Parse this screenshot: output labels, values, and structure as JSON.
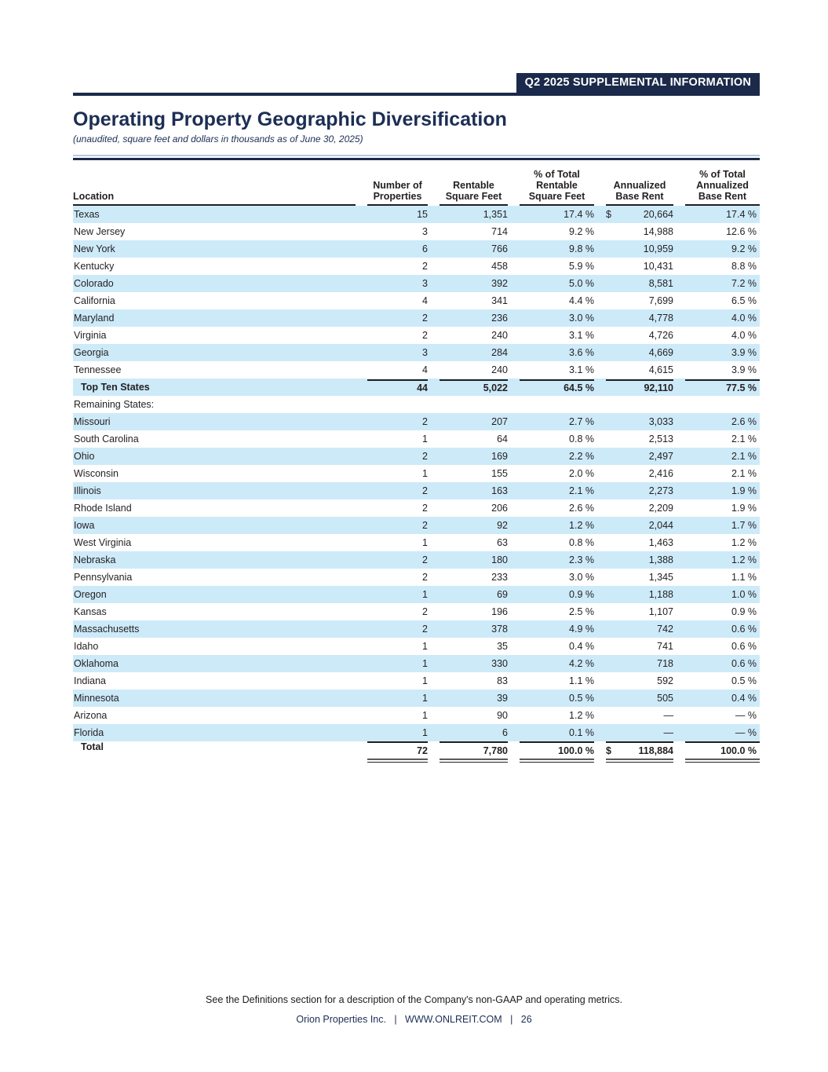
{
  "banner": "Q2 2025 SUPPLEMENTAL INFORMATION",
  "title": "Operating Property Geographic Diversification",
  "subtitle": "(unaudited, square feet and dollars in thousands as of June 30, 2025)",
  "colors": {
    "navy": "#1b2a4a",
    "title_navy": "#1c2e54",
    "row_stripe_blue": "#cdeaf9",
    "rule_black": "#231f20",
    "rule_steel": "#b6cbdc",
    "text_black": "#231f20"
  },
  "table": {
    "columns": [
      "Location",
      "Number of\nProperties",
      "Rentable\nSquare Feet",
      "% of Total\nRentable\nSquare Feet",
      "Annualized\nBase Rent",
      "% of Total\nAnnualized\nBase Rent"
    ],
    "rows": [
      {
        "type": "data",
        "label": "Texas",
        "dollar": "$",
        "values": [
          "15",
          "1,351",
          "17.4 %",
          "20,664",
          "17.4 %"
        ]
      },
      {
        "type": "data",
        "label": "New Jersey",
        "dollar": "",
        "values": [
          "3",
          "714",
          "9.2 %",
          "14,988",
          "12.6 %"
        ]
      },
      {
        "type": "data",
        "label": "New York",
        "dollar": "",
        "values": [
          "6",
          "766",
          "9.8 %",
          "10,959",
          "9.2 %"
        ]
      },
      {
        "type": "data",
        "label": "Kentucky",
        "dollar": "",
        "values": [
          "2",
          "458",
          "5.9 %",
          "10,431",
          "8.8 %"
        ]
      },
      {
        "type": "data",
        "label": "Colorado",
        "dollar": "",
        "values": [
          "3",
          "392",
          "5.0 %",
          "8,581",
          "7.2 %"
        ]
      },
      {
        "type": "data",
        "label": "California",
        "dollar": "",
        "values": [
          "4",
          "341",
          "4.4 %",
          "7,699",
          "6.5 %"
        ]
      },
      {
        "type": "data",
        "label": "Maryland",
        "dollar": "",
        "values": [
          "2",
          "236",
          "3.0 %",
          "4,778",
          "4.0 %"
        ]
      },
      {
        "type": "data",
        "label": "Virginia",
        "dollar": "",
        "values": [
          "2",
          "240",
          "3.1 %",
          "4,726",
          "4.0 %"
        ]
      },
      {
        "type": "data",
        "label": "Georgia",
        "dollar": "",
        "values": [
          "3",
          "284",
          "3.6 %",
          "4,669",
          "3.9 %"
        ]
      },
      {
        "type": "data",
        "label": "Tennessee",
        "dollar": "",
        "values": [
          "4",
          "240",
          "3.1 %",
          "4,615",
          "3.9 %"
        ]
      },
      {
        "type": "subtotal",
        "label": "Top Ten States",
        "dollar": "",
        "values": [
          "44",
          "5,022",
          "64.5 %",
          "92,110",
          "77.5 %"
        ]
      },
      {
        "type": "section",
        "label": "Remaining States:",
        "dollar": "",
        "values": [
          "",
          "",
          "",
          "",
          ""
        ]
      },
      {
        "type": "data",
        "label": "Missouri",
        "dollar": "",
        "values": [
          "2",
          "207",
          "2.7 %",
          "3,033",
          "2.6 %"
        ]
      },
      {
        "type": "data",
        "label": "South Carolina",
        "dollar": "",
        "values": [
          "1",
          "64",
          "0.8 %",
          "2,513",
          "2.1 %"
        ]
      },
      {
        "type": "data",
        "label": "Ohio",
        "dollar": "",
        "values": [
          "2",
          "169",
          "2.2 %",
          "2,497",
          "2.1 %"
        ]
      },
      {
        "type": "data",
        "label": "Wisconsin",
        "dollar": "",
        "values": [
          "1",
          "155",
          "2.0 %",
          "2,416",
          "2.1 %"
        ]
      },
      {
        "type": "data",
        "label": "Illinois",
        "dollar": "",
        "values": [
          "2",
          "163",
          "2.1 %",
          "2,273",
          "1.9 %"
        ]
      },
      {
        "type": "data",
        "label": "Rhode Island",
        "dollar": "",
        "values": [
          "2",
          "206",
          "2.6 %",
          "2,209",
          "1.9 %"
        ]
      },
      {
        "type": "data",
        "label": "Iowa",
        "dollar": "",
        "values": [
          "2",
          "92",
          "1.2 %",
          "2,044",
          "1.7 %"
        ]
      },
      {
        "type": "data",
        "label": "West Virginia",
        "dollar": "",
        "values": [
          "1",
          "63",
          "0.8 %",
          "1,463",
          "1.2 %"
        ]
      },
      {
        "type": "data",
        "label": "Nebraska",
        "dollar": "",
        "values": [
          "2",
          "180",
          "2.3 %",
          "1,388",
          "1.2 %"
        ]
      },
      {
        "type": "data",
        "label": "Pennsylvania",
        "dollar": "",
        "values": [
          "2",
          "233",
          "3.0 %",
          "1,345",
          "1.1 %"
        ]
      },
      {
        "type": "data",
        "label": "Oregon",
        "dollar": "",
        "values": [
          "1",
          "69",
          "0.9 %",
          "1,188",
          "1.0 %"
        ]
      },
      {
        "type": "data",
        "label": "Kansas",
        "dollar": "",
        "values": [
          "2",
          "196",
          "2.5 %",
          "1,107",
          "0.9 %"
        ]
      },
      {
        "type": "data",
        "label": "Massachusetts",
        "dollar": "",
        "values": [
          "2",
          "378",
          "4.9 %",
          "742",
          "0.6 %"
        ]
      },
      {
        "type": "data",
        "label": "Idaho",
        "dollar": "",
        "values": [
          "1",
          "35",
          "0.4 %",
          "741",
          "0.6 %"
        ]
      },
      {
        "type": "data",
        "label": "Oklahoma",
        "dollar": "",
        "values": [
          "1",
          "330",
          "4.2 %",
          "718",
          "0.6 %"
        ]
      },
      {
        "type": "data",
        "label": "Indiana",
        "dollar": "",
        "values": [
          "1",
          "83",
          "1.1 %",
          "592",
          "0.5 %"
        ]
      },
      {
        "type": "data",
        "label": "Minnesota",
        "dollar": "",
        "values": [
          "1",
          "39",
          "0.5 %",
          "505",
          "0.4 %"
        ]
      },
      {
        "type": "data",
        "label": "Arizona",
        "dollar": "",
        "values": [
          "1",
          "90",
          "1.2 %",
          "—",
          "— %"
        ]
      },
      {
        "type": "data",
        "label": "Florida",
        "dollar": "",
        "values": [
          "1",
          "6",
          "0.1 %",
          "—",
          "— %"
        ]
      },
      {
        "type": "total",
        "label": "Total",
        "dollar": "$",
        "values": [
          "72",
          "7,780",
          "100.0 %",
          "118,884",
          "100.0 %"
        ]
      }
    ]
  },
  "footnote": "See the Definitions section for a description of the Company's non-GAAP and operating metrics.",
  "footer": "Orion Properties Inc.   |   WWW.ONLREIT.COM   |   26"
}
